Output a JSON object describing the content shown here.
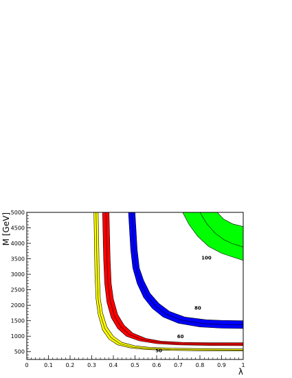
{
  "chart_data": {
    "type": "area",
    "xlabel": "λ",
    "ylabel": "M [GeV]",
    "xlim": [
      0,
      1
    ],
    "ylim": [
      250,
      5000
    ],
    "x_ticks": [
      0,
      0.1,
      0.2,
      0.3,
      0.4,
      0.5,
      0.6,
      0.7,
      0.8,
      0.9,
      1
    ],
    "x_tick_labels": [
      "0",
      "0.1",
      "0.2",
      "0.3",
      "0.4",
      "0.5",
      "0.6",
      "0.7",
      "0.8",
      "0.9",
      "1"
    ],
    "y_ticks": [
      500,
      1000,
      1500,
      2000,
      2500,
      3000,
      3500,
      4000,
      4500,
      5000
    ],
    "y_tick_labels": [
      "500",
      "1000",
      "1500",
      "2000",
      "2500",
      "3000",
      "3500",
      "4000",
      "4500",
      "5000"
    ],
    "grid": false,
    "series": [
      {
        "name": "50",
        "color": "#ffff00",
        "label_at": [
          0.61,
          480
        ],
        "lower": [
          [
            0.31,
            5000
          ],
          [
            0.315,
            3000
          ],
          [
            0.32,
            2200
          ],
          [
            0.33,
            1700
          ],
          [
            0.35,
            1200
          ],
          [
            0.38,
            900
          ],
          [
            0.42,
            720
          ],
          [
            0.48,
            620
          ],
          [
            0.55,
            570
          ],
          [
            0.65,
            545
          ],
          [
            0.8,
            530
          ],
          [
            1.0,
            525
          ]
        ],
        "center": [
          [
            0.32,
            5000
          ],
          [
            0.325,
            3000
          ],
          [
            0.33,
            2200
          ],
          [
            0.34,
            1700
          ],
          [
            0.36,
            1250
          ],
          [
            0.39,
            950
          ],
          [
            0.43,
            760
          ],
          [
            0.49,
            650
          ],
          [
            0.56,
            600
          ],
          [
            0.66,
            575
          ],
          [
            0.8,
            560
          ],
          [
            1.0,
            555
          ]
        ],
        "upper": [
          [
            0.33,
            5000
          ],
          [
            0.335,
            3000
          ],
          [
            0.34,
            2200
          ],
          [
            0.35,
            1750
          ],
          [
            0.37,
            1300
          ],
          [
            0.4,
            1000
          ],
          [
            0.44,
            800
          ],
          [
            0.5,
            690
          ],
          [
            0.57,
            640
          ],
          [
            0.67,
            615
          ],
          [
            0.8,
            600
          ],
          [
            1.0,
            590
          ]
        ]
      },
      {
        "name": "60",
        "color": "#ff0000",
        "label_at": [
          0.71,
          940
        ],
        "lower": [
          [
            0.35,
            5000
          ],
          [
            0.355,
            3500
          ],
          [
            0.36,
            2700
          ],
          [
            0.37,
            2100
          ],
          [
            0.39,
            1600
          ],
          [
            0.42,
            1250
          ],
          [
            0.46,
            1000
          ],
          [
            0.52,
            850
          ],
          [
            0.6,
            760
          ],
          [
            0.7,
            720
          ],
          [
            0.85,
            700
          ],
          [
            1.0,
            695
          ]
        ],
        "center": [
          [
            0.365,
            5000
          ],
          [
            0.37,
            3500
          ],
          [
            0.375,
            2700
          ],
          [
            0.385,
            2150
          ],
          [
            0.405,
            1650
          ],
          [
            0.435,
            1300
          ],
          [
            0.475,
            1050
          ],
          [
            0.535,
            890
          ],
          [
            0.61,
            800
          ],
          [
            0.71,
            760
          ],
          [
            0.85,
            745
          ],
          [
            1.0,
            740
          ]
        ],
        "upper": [
          [
            0.38,
            5000
          ],
          [
            0.385,
            3500
          ],
          [
            0.39,
            2700
          ],
          [
            0.4,
            2200
          ],
          [
            0.42,
            1700
          ],
          [
            0.45,
            1350
          ],
          [
            0.49,
            1100
          ],
          [
            0.55,
            930
          ],
          [
            0.62,
            840
          ],
          [
            0.72,
            800
          ],
          [
            0.85,
            790
          ],
          [
            1.0,
            790
          ]
        ]
      },
      {
        "name": "80",
        "color": "#0000ff",
        "label_at": [
          0.79,
          1860
        ],
        "lower": [
          [
            0.47,
            5000
          ],
          [
            0.48,
            3800
          ],
          [
            0.49,
            3200
          ],
          [
            0.51,
            2700
          ],
          [
            0.54,
            2250
          ],
          [
            0.58,
            1900
          ],
          [
            0.63,
            1620
          ],
          [
            0.7,
            1420
          ],
          [
            0.8,
            1300
          ],
          [
            0.9,
            1260
          ],
          [
            1.0,
            1250
          ]
        ],
        "center": [
          [
            0.485,
            5000
          ],
          [
            0.495,
            3800
          ],
          [
            0.505,
            3200
          ],
          [
            0.525,
            2750
          ],
          [
            0.555,
            2320
          ],
          [
            0.595,
            1980
          ],
          [
            0.645,
            1710
          ],
          [
            0.715,
            1520
          ],
          [
            0.815,
            1410
          ],
          [
            0.9,
            1380
          ],
          [
            1.0,
            1370
          ]
        ],
        "upper": [
          [
            0.5,
            5000
          ],
          [
            0.51,
            3800
          ],
          [
            0.52,
            3200
          ],
          [
            0.54,
            2800
          ],
          [
            0.57,
            2380
          ],
          [
            0.61,
            2060
          ],
          [
            0.66,
            1800
          ],
          [
            0.73,
            1620
          ],
          [
            0.83,
            1530
          ],
          [
            0.9,
            1510
          ],
          [
            1.0,
            1500
          ]
        ]
      },
      {
        "name": "100",
        "color": "#00ff00",
        "label_at": [
          0.83,
          3480
        ],
        "lower": [
          [
            0.72,
            5000
          ],
          [
            0.75,
            4600
          ],
          [
            0.79,
            4220
          ],
          [
            0.84,
            3900
          ],
          [
            0.9,
            3680
          ],
          [
            0.95,
            3560
          ],
          [
            1.0,
            3450
          ]
        ],
        "center": [
          [
            0.8,
            5000
          ],
          [
            0.83,
            4650
          ],
          [
            0.87,
            4330
          ],
          [
            0.91,
            4120
          ],
          [
            0.95,
            3990
          ],
          [
            1.0,
            3880
          ]
        ],
        "upper": [
          [
            0.88,
            5000
          ],
          [
            0.91,
            4780
          ],
          [
            0.95,
            4630
          ],
          [
            1.0,
            4540
          ]
        ]
      }
    ]
  }
}
